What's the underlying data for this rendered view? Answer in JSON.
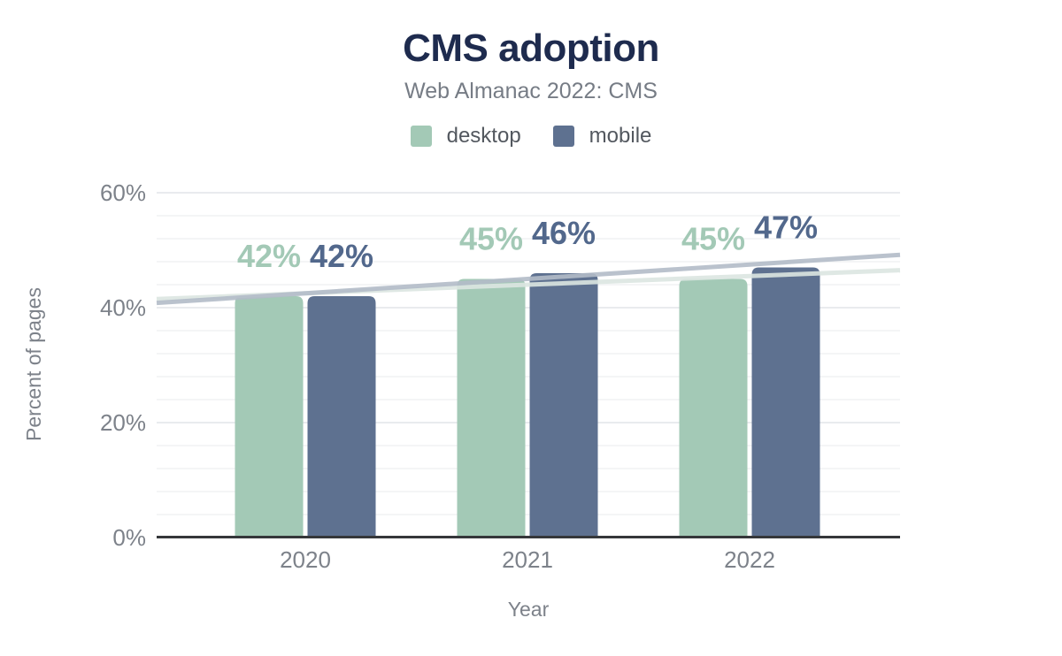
{
  "chart_data": {
    "type": "bar",
    "title": "CMS adoption",
    "subtitle": "Web Almanac 2022: CMS",
    "xlabel": "Year",
    "ylabel": "Percent of pages",
    "categories": [
      "2020",
      "2021",
      "2022"
    ],
    "series": [
      {
        "name": "desktop",
        "values": [
          42,
          45,
          45
        ],
        "color": "#a3c9b6",
        "label_color": "#a3c9b6",
        "trend_color": "#dce6e1"
      },
      {
        "name": "mobile",
        "values": [
          42,
          46,
          47
        ],
        "color": "#5e7190",
        "label_color": "#52688c",
        "trend_color": "#b2bbc8"
      }
    ],
    "value_suffix": "%",
    "yticks": [
      0,
      20,
      40,
      60
    ],
    "ylim": [
      0,
      60
    ],
    "minor_step": 4,
    "grid": true,
    "legend_position": "top",
    "trendlines": true,
    "colors": {
      "title": "#1e2b4e",
      "subtitle": "#767c85",
      "legend_text": "#53585f",
      "axis_text": "#7d828a",
      "axis_line": "#35373a",
      "grid_major": "#e9ebee",
      "grid_minor": "#f4f5f6",
      "background": "#ffffff"
    }
  }
}
